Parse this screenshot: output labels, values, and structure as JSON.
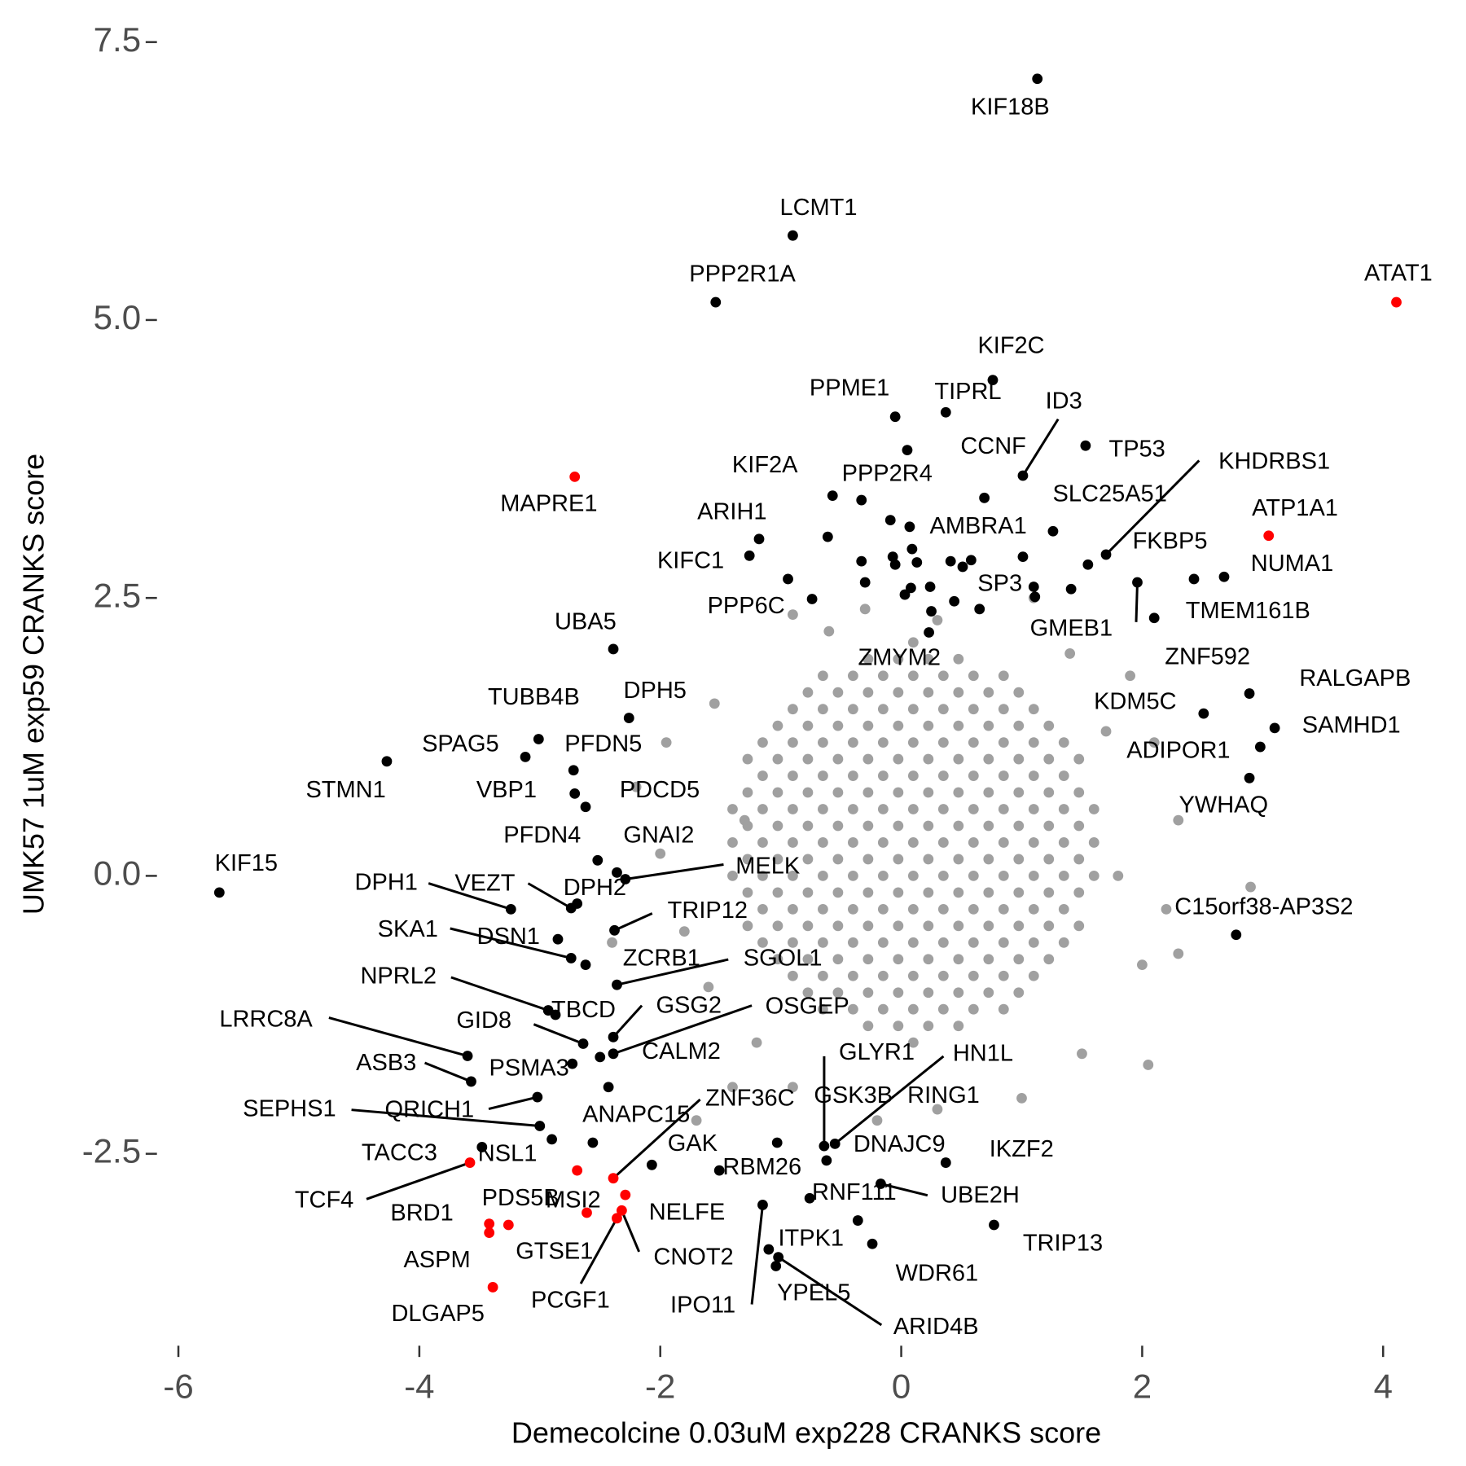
{
  "chart_data": {
    "type": "scatter",
    "xlabel": "Demecolcine 0.03uM exp228 CRANKS score",
    "ylabel": "UMK57 1uM exp59 CRANKS score",
    "xlim": [
      -6.15,
      4.45
    ],
    "ylim": [
      -4.3,
      7.8
    ],
    "xticks": [
      -6,
      -4,
      -2,
      0,
      2,
      4
    ],
    "yticks": [
      -2.5,
      {
        "value": 0,
        "label": "0.0"
      },
      2.5,
      {
        "value": 5,
        "label": "5.0"
      },
      7.5
    ],
    "grid": false,
    "series": [
      {
        "color": "#a0a0a0",
        "x": [
          0.1,
          -0.275,
          -0.025,
          0.225,
          0.475,
          -0.65,
          -0.4,
          -0.15,
          0.1,
          0.35,
          0.6,
          0.85,
          -0.775,
          -0.525,
          -0.275,
          -0.025,
          0.225,
          0.475,
          0.725,
          0.975,
          -0.9,
          -0.65,
          -0.4,
          -0.15,
          0.1,
          0.35,
          0.6,
          0.85,
          1.1,
          -1.025,
          -0.775,
          -0.525,
          -0.275,
          -0.025,
          0.225,
          0.475,
          0.725,
          0.975,
          1.225,
          -1.15,
          -0.9,
          -0.65,
          -0.4,
          -0.15,
          0.1,
          0.35,
          0.6,
          0.85,
          1.1,
          1.35,
          -1.275,
          -1.025,
          -0.775,
          -0.525,
          -0.275,
          -0.025,
          0.225,
          0.475,
          0.725,
          0.975,
          1.225,
          1.475,
          -1.15,
          -0.9,
          -0.65,
          -0.4,
          -0.15,
          0.1,
          0.35,
          0.6,
          0.85,
          1.1,
          1.35,
          -1.275,
          -1.025,
          -0.775,
          -0.525,
          -0.275,
          -0.025,
          0.225,
          0.475,
          0.725,
          0.975,
          1.225,
          1.475,
          -1.4,
          -1.15,
          -0.9,
          -0.65,
          -0.4,
          -0.15,
          0.1,
          0.35,
          0.6,
          0.85,
          1.1,
          1.35,
          1.6,
          -1.275,
          -1.025,
          -0.775,
          -0.525,
          -0.275,
          -0.025,
          0.225,
          0.475,
          0.725,
          0.975,
          1.225,
          1.475,
          -1.4,
          -1.15,
          -0.9,
          -0.65,
          -0.4,
          -0.15,
          0.1,
          0.35,
          0.6,
          0.85,
          1.1,
          1.35,
          1.6,
          -1.275,
          -1.025,
          -0.775,
          -0.525,
          -0.275,
          -0.025,
          0.225,
          0.475,
          0.725,
          0.975,
          1.225,
          1.475,
          -1.4,
          -1.15,
          -0.9,
          -0.65,
          -0.4,
          -0.15,
          0.1,
          0.35,
          0.6,
          0.85,
          1.1,
          1.35,
          1.6,
          -1.275,
          -1.025,
          -0.775,
          -0.525,
          -0.275,
          -0.025,
          0.225,
          0.475,
          0.725,
          0.975,
          1.225,
          1.475,
          -1.15,
          -0.9,
          -0.65,
          -0.4,
          -0.15,
          0.1,
          0.35,
          0.6,
          0.85,
          1.1,
          1.35,
          -1.275,
          -1.025,
          -0.775,
          -0.525,
          -0.275,
          -0.025,
          0.225,
          0.475,
          0.725,
          0.975,
          1.225,
          1.475,
          -1.15,
          -0.9,
          -0.65,
          -0.4,
          -0.15,
          0.1,
          0.35,
          0.6,
          0.85,
          1.1,
          1.35,
          -1.025,
          -0.775,
          -0.525,
          -0.275,
          -0.025,
          0.225,
          0.475,
          0.725,
          0.975,
          1.225,
          -0.9,
          -0.65,
          -0.4,
          -0.15,
          0.1,
          0.35,
          0.6,
          0.85,
          1.1,
          -0.775,
          -0.525,
          -0.275,
          -0.025,
          0.225,
          0.475,
          0.725,
          0.975,
          -0.65,
          -0.4,
          -0.15,
          0.1,
          0.35,
          0.6,
          0.85,
          -0.275,
          -0.025,
          0.225,
          0.475,
          0.1,
          -1.55,
          -1.95,
          -2.0,
          -1.8,
          -1.6,
          -1.4,
          -1.7,
          -0.9,
          -0.6,
          -0.3,
          0.3,
          1.1,
          1.4,
          1.9,
          2.1,
          2.3,
          2.2,
          2.0,
          2.05,
          2.3,
          2.9,
          1.5,
          1.0,
          0.3,
          -0.2,
          -0.9,
          -1.2,
          -2.2,
          -2.4,
          1.7,
          -1.3,
          1.8
        ],
        "y": [
          -1.5,
          -1.35,
          -1.35,
          -1.35,
          -1.35,
          -1.2,
          -1.2,
          -1.2,
          -1.2,
          -1.2,
          -1.2,
          -1.2,
          -1.05,
          -1.05,
          -1.05,
          -1.05,
          -1.05,
          -1.05,
          -1.05,
          -1.05,
          -0.9,
          -0.9,
          -0.9,
          -0.9,
          -0.9,
          -0.9,
          -0.9,
          -0.9,
          -0.9,
          -0.75,
          -0.75,
          -0.75,
          -0.75,
          -0.75,
          -0.75,
          -0.75,
          -0.75,
          -0.75,
          -0.75,
          -0.6,
          -0.6,
          -0.6,
          -0.6,
          -0.6,
          -0.6,
          -0.6,
          -0.6,
          -0.6,
          -0.6,
          -0.6,
          -0.45,
          -0.45,
          -0.45,
          -0.45,
          -0.45,
          -0.45,
          -0.45,
          -0.45,
          -0.45,
          -0.45,
          -0.45,
          -0.45,
          -0.3,
          -0.3,
          -0.3,
          -0.3,
          -0.3,
          -0.3,
          -0.3,
          -0.3,
          -0.3,
          -0.3,
          -0.3,
          -0.15,
          -0.15,
          -0.15,
          -0.15,
          -0.15,
          -0.15,
          -0.15,
          -0.15,
          -0.15,
          -0.15,
          -0.15,
          -0.15,
          0,
          0,
          0,
          0,
          0,
          0,
          0,
          0,
          0,
          0,
          0,
          0,
          0,
          0.15,
          0.15,
          0.15,
          0.15,
          0.15,
          0.15,
          0.15,
          0.15,
          0.15,
          0.15,
          0.15,
          0.15,
          0.3,
          0.3,
          0.3,
          0.3,
          0.3,
          0.3,
          0.3,
          0.3,
          0.3,
          0.3,
          0.3,
          0.3,
          0.3,
          0.45,
          0.45,
          0.45,
          0.45,
          0.45,
          0.45,
          0.45,
          0.45,
          0.45,
          0.45,
          0.45,
          0.45,
          0.6,
          0.6,
          0.6,
          0.6,
          0.6,
          0.6,
          0.6,
          0.6,
          0.6,
          0.6,
          0.6,
          0.6,
          0.6,
          0.75,
          0.75,
          0.75,
          0.75,
          0.75,
          0.75,
          0.75,
          0.75,
          0.75,
          0.75,
          0.75,
          0.75,
          0.9,
          0.9,
          0.9,
          0.9,
          0.9,
          0.9,
          0.9,
          0.9,
          0.9,
          0.9,
          0.9,
          1.05,
          1.05,
          1.05,
          1.05,
          1.05,
          1.05,
          1.05,
          1.05,
          1.05,
          1.05,
          1.05,
          1.05,
          1.2,
          1.2,
          1.2,
          1.2,
          1.2,
          1.2,
          1.2,
          1.2,
          1.2,
          1.2,
          1.2,
          1.35,
          1.35,
          1.35,
          1.35,
          1.35,
          1.35,
          1.35,
          1.35,
          1.35,
          1.35,
          1.5,
          1.5,
          1.5,
          1.5,
          1.5,
          1.5,
          1.5,
          1.5,
          1.5,
          1.65,
          1.65,
          1.65,
          1.65,
          1.65,
          1.65,
          1.65,
          1.65,
          1.8,
          1.8,
          1.8,
          1.8,
          1.8,
          1.8,
          1.8,
          1.95,
          1.95,
          1.95,
          1.95,
          2.1,
          1.55,
          1.2,
          0.2,
          -0.5,
          -1.0,
          -1.9,
          -2.2,
          2.35,
          2.2,
          2.4,
          2.3,
          2.5,
          2.0,
          1.8,
          1.2,
          0.5,
          -0.3,
          -0.8,
          -1.7,
          -0.7,
          -0.1,
          -1.6,
          -2.0,
          -2.1,
          -2.2,
          -1.9,
          -1.5,
          0.8,
          -0.6,
          1.3,
          0.5,
          0.0
        ]
      },
      {
        "color": "#000000",
        "x": [
          1.13,
          -0.9,
          -1.54,
          0.76,
          -0.05,
          0.37,
          1.01,
          0.05,
          1.53,
          1.7,
          -0.57,
          -0.33,
          1.26,
          -1.18,
          0.07,
          1.55,
          -1.26,
          2.68,
          1.1,
          -0.74,
          2.1,
          1.96,
          0.23,
          -2.39,
          2.43,
          2.89,
          2.51,
          -2.26,
          -3.01,
          3.1,
          -3.12,
          -2.72,
          2.98,
          -4.27,
          -2.71,
          -2.62,
          2.89,
          -2.52,
          -2.36,
          -2.29,
          -5.66,
          -3.24,
          -2.74,
          -2.69,
          -2.38,
          2.78,
          -2.74,
          -2.85,
          -2.62,
          -2.36,
          -2.93,
          -2.87,
          -2.39,
          -2.39,
          -2.64,
          -2.5,
          -3.6,
          -3.57,
          -2.73,
          -2.43,
          -3.02,
          -3.0,
          -3.48,
          -2.9,
          -2.07,
          -1.51,
          -1.15,
          -1.1,
          -1.04,
          -1.02,
          -1.03,
          -0.64,
          -0.55,
          -0.62,
          -0.36,
          0.37,
          -0.17,
          -0.76,
          0.77,
          -0.24,
          -2.56,
          -0.61,
          -0.33,
          -0.3,
          -0.09,
          -0.07,
          -0.05,
          0.08,
          0.24,
          0.03,
          0.13,
          0.41,
          0.51,
          0.58,
          0.44,
          0.65,
          0.69,
          1.01,
          1.11,
          1.41,
          -0.94,
          0.25,
          0.09
        ],
        "y": [
          7.17,
          5.76,
          5.16,
          4.46,
          4.13,
          4.17,
          3.6,
          3.83,
          3.87,
          2.89,
          3.42,
          3.38,
          3.1,
          3.03,
          3.14,
          2.8,
          2.88,
          2.69,
          2.6,
          2.49,
          2.32,
          2.64,
          2.19,
          2.04,
          2.67,
          1.64,
          1.46,
          1.42,
          1.23,
          1.33,
          1.07,
          0.95,
          1.16,
          1.03,
          0.74,
          0.62,
          0.88,
          0.14,
          0.03,
          -0.03,
          -0.15,
          -0.3,
          -0.29,
          -0.25,
          -0.49,
          -0.53,
          -0.74,
          -0.57,
          -0.8,
          -0.98,
          -1.21,
          -1.25,
          -1.45,
          -1.6,
          -1.51,
          -1.63,
          -1.62,
          -1.85,
          -1.69,
          -1.9,
          -1.99,
          -2.25,
          -2.44,
          -2.37,
          -2.6,
          -2.65,
          -2.96,
          -3.36,
          -3.51,
          -3.43,
          -2.4,
          -2.43,
          -2.41,
          -2.56,
          -3.1,
          -2.58,
          -2.77,
          -2.9,
          -3.14,
          -3.31,
          -2.4,
          3.05,
          2.83,
          2.64,
          3.2,
          2.87,
          2.8,
          2.59,
          2.6,
          2.53,
          2.82,
          2.83,
          2.78,
          2.84,
          2.47,
          2.4,
          3.4,
          2.87,
          2.51,
          2.58,
          2.67,
          2.38,
          2.94
        ],
        "labels": [
          "KIF18B",
          "LCMT1",
          "PPP2R1A",
          "KIF2C",
          "PPME1",
          "TIPRL",
          "ID3",
          "CCNF",
          "TP53",
          "KHDRBS1",
          "KIF2A",
          "PPP2R4",
          "SLC25A51",
          "ARIH1",
          "AMBRA1",
          "FKBP5",
          "KIFC1",
          "NUMA1",
          "SP3",
          "PPP6C",
          "TMEM161B",
          "GMEB1",
          "ZMYM2",
          "UBA5",
          "ZNF592",
          "RALGAPB",
          "KDM5C",
          "DPH5",
          "TUBB4B",
          "SAMHD1",
          "SPAG5",
          "PFDN5",
          "ADIPOR1",
          "STMN1",
          "VBP1",
          "PDCD5",
          "YWHAQ",
          "PFDN4",
          "GNAI2",
          "MELK",
          "KIF15",
          "DPH1",
          "VEZT",
          "DPH2",
          "TRIP12",
          "C15orf38-AP3S2",
          "SKA1",
          "DSN1",
          "ZCRB1",
          "SGOL1",
          "NPRL2",
          "TBCD",
          "GSG2",
          "OSGEP",
          "GID8",
          "CALM2",
          "LRRC8A",
          "ASB3",
          "PSMA3",
          "ANAPC15",
          "QRICH1",
          "SEPHS1",
          "TACC3",
          "NSL1",
          "GAK",
          "RBM26",
          "IPO11",
          "ITPK1",
          "YPEL5",
          "ARID4B",
          "GSK3B",
          "GLYR1",
          "HN1L",
          "DNAJC9",
          "RING1",
          "IKZF2",
          "UBE2H",
          "RNF111",
          "TRIP13",
          "WDR61",
          null,
          null,
          null,
          null,
          null,
          null,
          null,
          null,
          null,
          null,
          null,
          null,
          null,
          null,
          null,
          null,
          null,
          null,
          null,
          null,
          null,
          null,
          null
        ]
      },
      {
        "color": "#ff0000",
        "x": [
          4.11,
          -2.71,
          3.05,
          -3.58,
          -2.69,
          -2.39,
          -2.29,
          -2.36,
          -2.32,
          -2.61,
          -3.26,
          -3.42,
          -3.42,
          -3.39
        ],
        "y": [
          5.16,
          3.59,
          3.06,
          -2.58,
          -2.65,
          -2.72,
          -2.87,
          -3.08,
          -3.01,
          -3.03,
          -3.14,
          -3.13,
          -3.21,
          -3.7
        ],
        "labels": [
          "ATAT1",
          "MAPRE1",
          "ATP1A1",
          "TCF4",
          "MSI2",
          "ZNF36C",
          "NELFE",
          "PCGF1",
          "CNOT2",
          "GTSE1",
          "PDS5B",
          "BRD1",
          "ASPM",
          "DLGAP5"
        ]
      }
    ]
  }
}
